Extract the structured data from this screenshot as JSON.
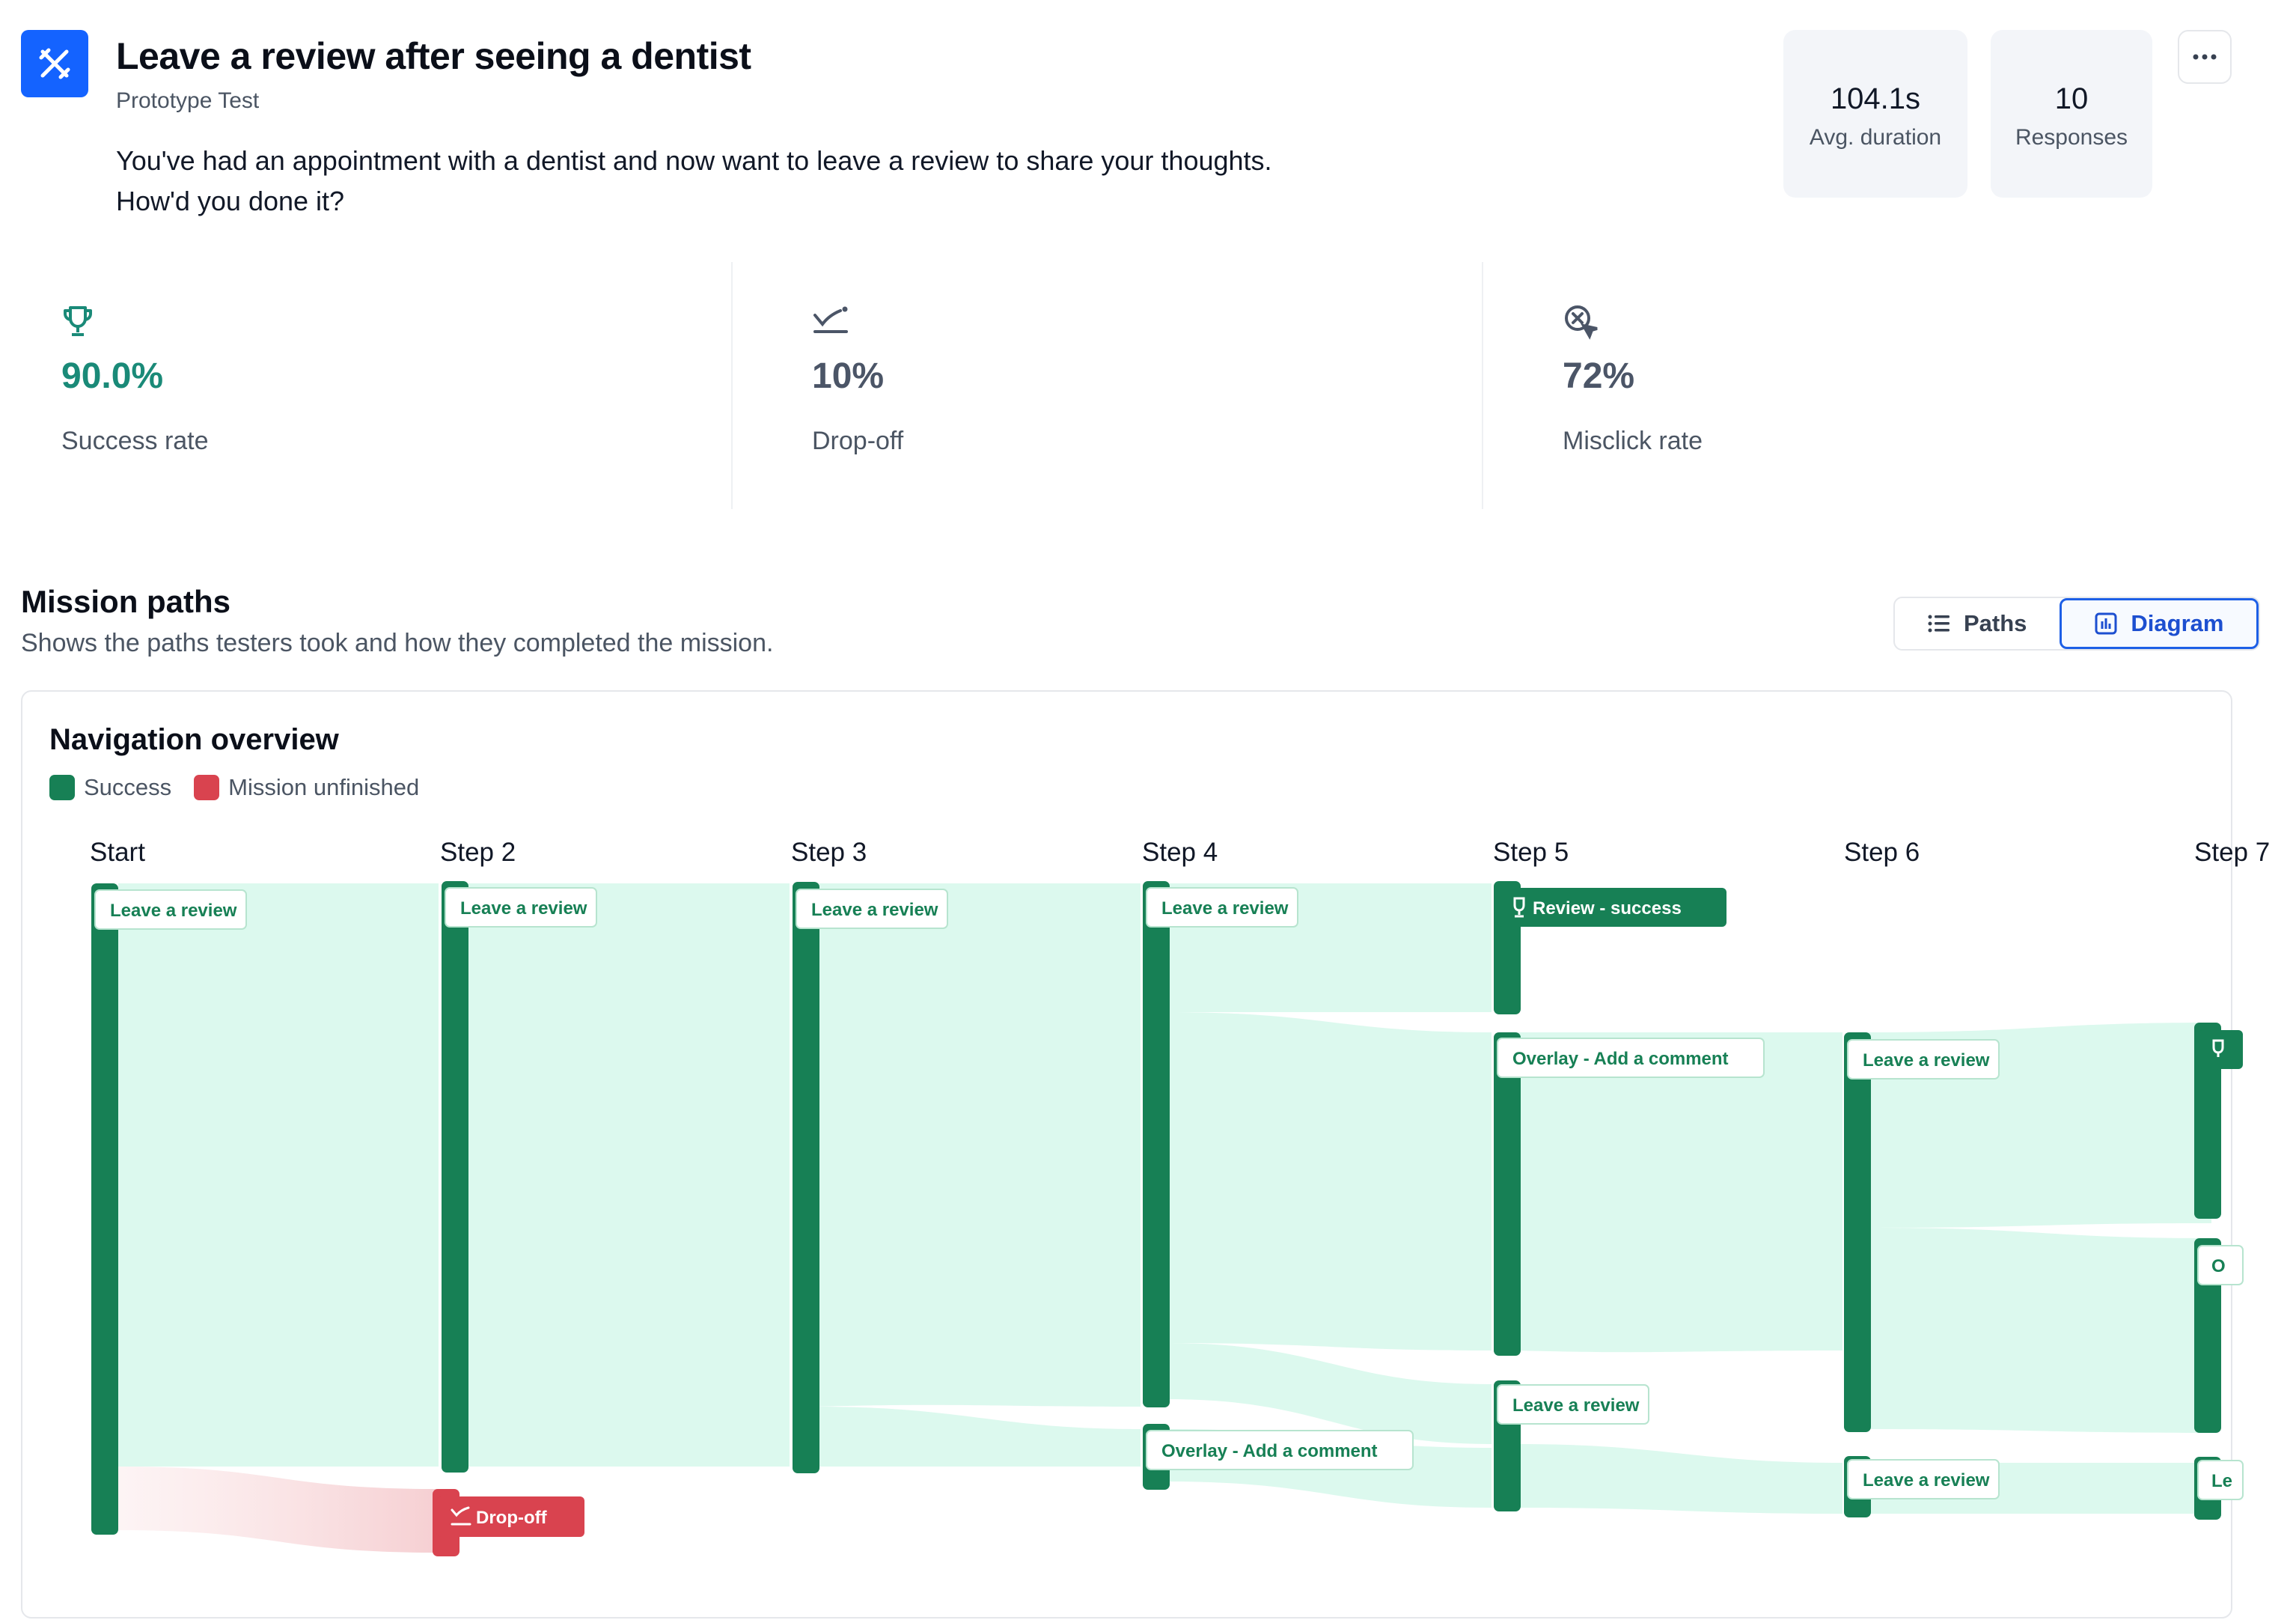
{
  "header": {
    "title": "Leave a review after seeing a dentist",
    "subtitle": "Prototype Test",
    "description_line1": "You've had an appointment with a dentist and now want to leave a review to share your thoughts.",
    "description_line2": "How'd you done it?",
    "icon": "cross-tools-icon",
    "accent": "#1463ff"
  },
  "stats": {
    "avg_duration_value": "104.1s",
    "avg_duration_label": "Avg. duration",
    "responses_value": "10",
    "responses_label": "Responses",
    "more_icon": "more-dots-icon"
  },
  "metrics": {
    "success_value": "90.0%",
    "success_label": "Success rate",
    "success_icon": "trophy-icon",
    "success_color": "#1a8a78",
    "dropoff_value": "10%",
    "dropoff_label": "Drop-off",
    "dropoff_icon": "drop-off-icon",
    "misclick_value": "72%",
    "misclick_label": "Misclick rate",
    "misclick_icon": "misclick-target-icon"
  },
  "mission": {
    "title": "Mission paths",
    "subtitle": "Shows the paths testers took and how they completed the mission.",
    "toggle_paths": "Paths",
    "toggle_diagram": "Diagram"
  },
  "overview": {
    "title": "Navigation overview",
    "legend_success": "Success",
    "legend_unfinished": "Mission unfinished",
    "success_color": "#178055",
    "unfinished_color": "#d9434f",
    "flow_color": "#dcf9ee",
    "steps": [
      "Start",
      "Step 2",
      "Step 3",
      "Step 4",
      "Step 5",
      "Step 6",
      "Step 7"
    ],
    "nodes": {
      "start_leave": "Leave a review",
      "s2_leave": "Leave a review",
      "s2_dropoff": "Drop-off",
      "s3_leave": "Leave a review",
      "s4_leave": "Leave a review",
      "s4_overlay": "Overlay - Add a comment",
      "s5_success": "Review - success",
      "s5_overlay": "Overlay - Add a comment",
      "s5_leave": "Leave a review",
      "s6_leave_top": "Leave a review",
      "s6_leave_bottom": "Leave a review",
      "s7_overlay_partial": "O",
      "s7_leave_partial": "Le"
    }
  }
}
